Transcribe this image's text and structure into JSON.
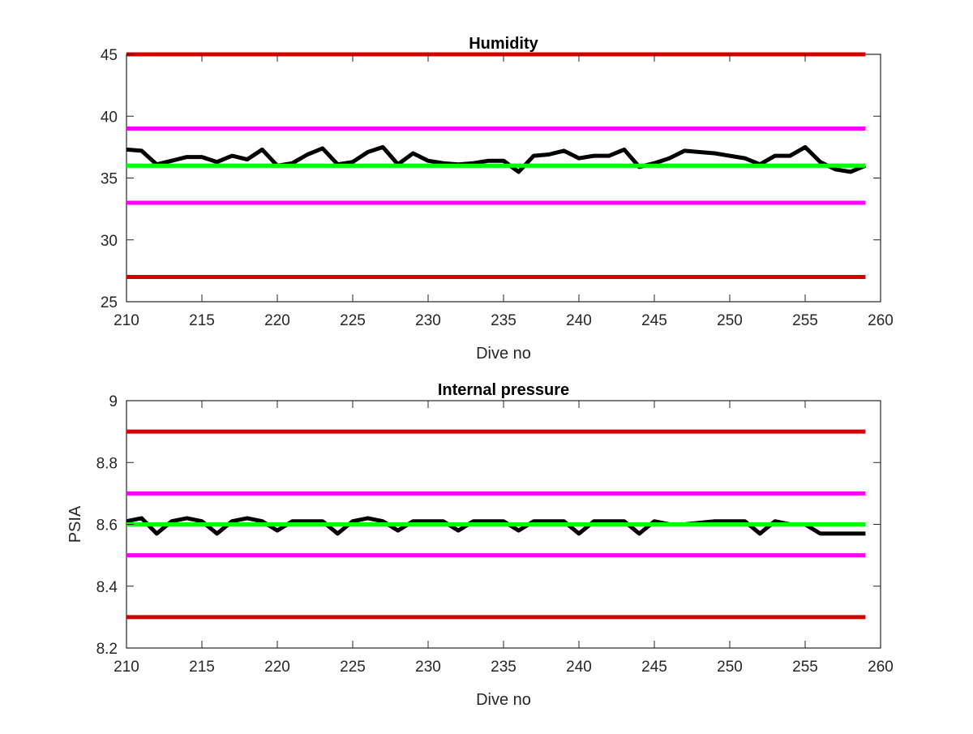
{
  "chart_data": [
    {
      "type": "line",
      "title": "Humidity",
      "xlabel": "Dive no",
      "ylabel": "",
      "xlim": [
        210,
        260
      ],
      "ylim": [
        25,
        45
      ],
      "xticks": [
        210,
        215,
        220,
        225,
        230,
        235,
        240,
        245,
        250,
        255,
        260
      ],
      "yticks": [
        25,
        30,
        35,
        40,
        45
      ],
      "grid": false,
      "reference_lines": [
        {
          "y": 45,
          "color": "#d40000"
        },
        {
          "y": 39,
          "color": "#ff00ff"
        },
        {
          "y": 36,
          "color": "#00ff00"
        },
        {
          "y": 33,
          "color": "#ff00ff"
        },
        {
          "y": 27,
          "color": "#d40000"
        }
      ],
      "series": [
        {
          "color": "#000000",
          "x": [
            210,
            211,
            212,
            213,
            214,
            215,
            216,
            217,
            218,
            219,
            220,
            221,
            222,
            223,
            224,
            225,
            226,
            227,
            228,
            229,
            230,
            231,
            232,
            233,
            234,
            235,
            236,
            237,
            238,
            239,
            240,
            241,
            242,
            243,
            244,
            245,
            246,
            247,
            248,
            249,
            250,
            251,
            252,
            253,
            254,
            255,
            256,
            257,
            258,
            259
          ],
          "values": [
            37.3,
            37.2,
            36.1,
            36.4,
            36.7,
            36.7,
            36.3,
            36.8,
            36.5,
            37.3,
            36.0,
            36.2,
            36.9,
            37.4,
            36.1,
            36.3,
            37.1,
            37.5,
            36.1,
            37.0,
            36.4,
            36.2,
            36.1,
            36.2,
            36.4,
            36.4,
            35.5,
            36.8,
            36.9,
            37.2,
            36.6,
            36.8,
            36.8,
            37.3,
            35.9,
            36.2,
            36.6,
            37.2,
            37.1,
            37.0,
            36.8,
            36.6,
            36.1,
            36.8,
            36.8,
            37.5,
            36.3,
            35.7,
            35.5,
            36.0
          ]
        }
      ]
    },
    {
      "type": "line",
      "title": "Internal pressure",
      "xlabel": "Dive no",
      "ylabel": "PSIA",
      "xlim": [
        210,
        260
      ],
      "ylim": [
        8.2,
        9
      ],
      "xticks": [
        210,
        215,
        220,
        225,
        230,
        235,
        240,
        245,
        250,
        255,
        260
      ],
      "yticks": [
        8.2,
        8.4,
        8.6,
        8.8,
        9
      ],
      "grid": false,
      "reference_lines": [
        {
          "y": 8.9,
          "color": "#d40000"
        },
        {
          "y": 8.7,
          "color": "#ff00ff"
        },
        {
          "y": 8.6,
          "color": "#00ff00"
        },
        {
          "y": 8.5,
          "color": "#ff00ff"
        },
        {
          "y": 8.3,
          "color": "#d40000"
        }
      ],
      "series": [
        {
          "color": "#000000",
          "x": [
            210,
            211,
            212,
            213,
            214,
            215,
            216,
            217,
            218,
            219,
            220,
            221,
            222,
            223,
            224,
            225,
            226,
            227,
            228,
            229,
            230,
            231,
            232,
            233,
            234,
            235,
            236,
            237,
            238,
            239,
            240,
            241,
            242,
            243,
            244,
            245,
            246,
            247,
            248,
            249,
            250,
            251,
            252,
            253,
            254,
            255,
            256,
            257,
            258,
            259
          ],
          "values": [
            8.61,
            8.62,
            8.57,
            8.61,
            8.62,
            8.61,
            8.57,
            8.61,
            8.62,
            8.61,
            8.58,
            8.61,
            8.61,
            8.61,
            8.57,
            8.61,
            8.62,
            8.61,
            8.58,
            8.61,
            8.61,
            8.61,
            8.58,
            8.61,
            8.61,
            8.61,
            8.58,
            8.61,
            8.61,
            8.61,
            8.57,
            8.61,
            8.61,
            8.61,
            8.57,
            8.61,
            8.6,
            8.6,
            8.605,
            8.61,
            8.61,
            8.61,
            8.57,
            8.61,
            8.6,
            8.6,
            8.57,
            8.57,
            8.57,
            8.57
          ]
        }
      ]
    }
  ]
}
